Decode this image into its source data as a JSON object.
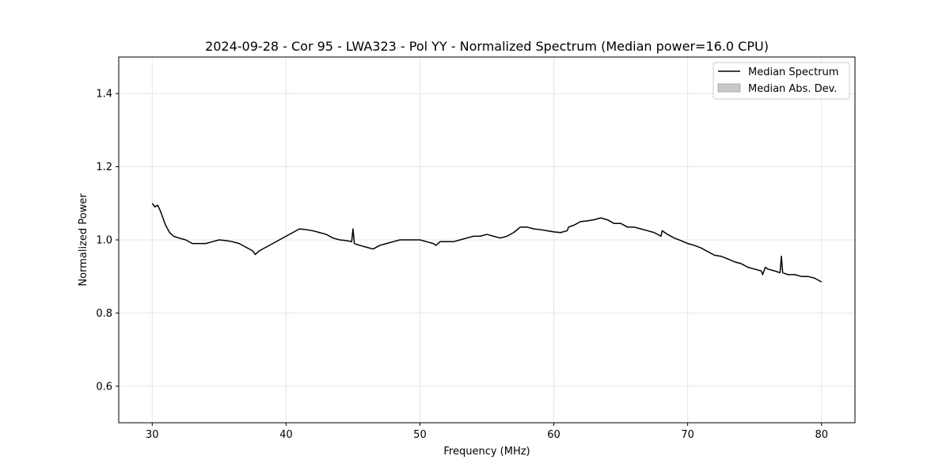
{
  "chart_data": {
    "type": "line",
    "title": "2024-09-28 - Cor 95 - LWA323 - Pol YY - Normalized Spectrum (Median power=16.0 CPU)",
    "xlabel": "Frequency (MHz)",
    "ylabel": "Normalized Power",
    "xlim": [
      27.5,
      82.5
    ],
    "ylim": [
      0.5,
      1.5
    ],
    "xticks": [
      30,
      40,
      50,
      60,
      70,
      80
    ],
    "yticks": [
      0.6,
      0.8,
      1.0,
      1.2,
      1.4
    ],
    "xtick_labels": [
      "30",
      "40",
      "50",
      "60",
      "70",
      "80"
    ],
    "ytick_labels": [
      "0.6",
      "0.8",
      "1.0",
      "1.2",
      "1.4"
    ],
    "grid": true,
    "legend_position": "top-right",
    "colors": {
      "line": "#000000",
      "band": "#c8c8c8",
      "grid": "#e6e6e6"
    },
    "legend": [
      {
        "label": "Median Spectrum",
        "kind": "line"
      },
      {
        "label": "Median Abs. Dev.",
        "kind": "band"
      }
    ],
    "series": [
      {
        "name": "Median Spectrum",
        "x": [
          30.0,
          30.2,
          30.4,
          30.6,
          30.8,
          31.0,
          31.3,
          31.6,
          32.0,
          32.5,
          33.0,
          33.5,
          34.0,
          34.5,
          35.0,
          35.5,
          36.0,
          36.5,
          37.0,
          37.5,
          37.7,
          38.0,
          38.5,
          39.0,
          39.5,
          40.0,
          40.5,
          41.0,
          41.5,
          42.0,
          42.5,
          43.0,
          43.5,
          44.0,
          44.5,
          44.9,
          45.0,
          45.1,
          45.5,
          46.0,
          46.5,
          47.0,
          47.5,
          48.0,
          48.5,
          49.0,
          49.5,
          50.0,
          50.5,
          51.0,
          51.2,
          51.5,
          52.0,
          52.5,
          53.0,
          53.5,
          54.0,
          54.5,
          55.0,
          55.5,
          56.0,
          56.5,
          57.0,
          57.5,
          58.0,
          58.5,
          59.0,
          59.5,
          60.0,
          60.5,
          61.0,
          61.1,
          61.5,
          62.0,
          62.5,
          63.0,
          63.5,
          64.0,
          64.5,
          65.0,
          65.5,
          66.0,
          66.5,
          67.0,
          67.5,
          68.0,
          68.1,
          68.5,
          69.0,
          69.5,
          70.0,
          70.5,
          71.0,
          71.5,
          72.0,
          72.5,
          73.0,
          73.5,
          74.0,
          74.5,
          75.0,
          75.5,
          75.6,
          75.8,
          76.0,
          76.5,
          76.9,
          77.0,
          77.1,
          77.5,
          78.0,
          78.5,
          79.0,
          79.5,
          80.0
        ],
        "values": [
          1.1,
          1.09,
          1.095,
          1.08,
          1.06,
          1.04,
          1.02,
          1.01,
          1.005,
          1.0,
          0.99,
          0.99,
          0.99,
          0.995,
          1.0,
          0.998,
          0.995,
          0.99,
          0.98,
          0.97,
          0.96,
          0.97,
          0.98,
          0.99,
          1.0,
          1.01,
          1.02,
          1.03,
          1.028,
          1.025,
          1.02,
          1.015,
          1.005,
          1.0,
          0.998,
          0.995,
          1.03,
          0.99,
          0.985,
          0.98,
          0.975,
          0.985,
          0.99,
          0.995,
          1.0,
          1.0,
          1.0,
          1.0,
          0.995,
          0.99,
          0.985,
          0.995,
          0.995,
          0.995,
          1.0,
          1.005,
          1.01,
          1.01,
          1.015,
          1.01,
          1.005,
          1.01,
          1.02,
          1.035,
          1.035,
          1.03,
          1.028,
          1.025,
          1.022,
          1.02,
          1.025,
          1.035,
          1.04,
          1.05,
          1.052,
          1.055,
          1.06,
          1.055,
          1.045,
          1.045,
          1.035,
          1.035,
          1.03,
          1.025,
          1.02,
          1.01,
          1.025,
          1.015,
          1.005,
          0.998,
          0.99,
          0.985,
          0.978,
          0.968,
          0.958,
          0.955,
          0.948,
          0.94,
          0.935,
          0.925,
          0.92,
          0.915,
          0.905,
          0.925,
          0.92,
          0.915,
          0.91,
          0.955,
          0.91,
          0.905,
          0.905,
          0.9,
          0.9,
          0.895,
          0.885
        ]
      }
    ]
  }
}
